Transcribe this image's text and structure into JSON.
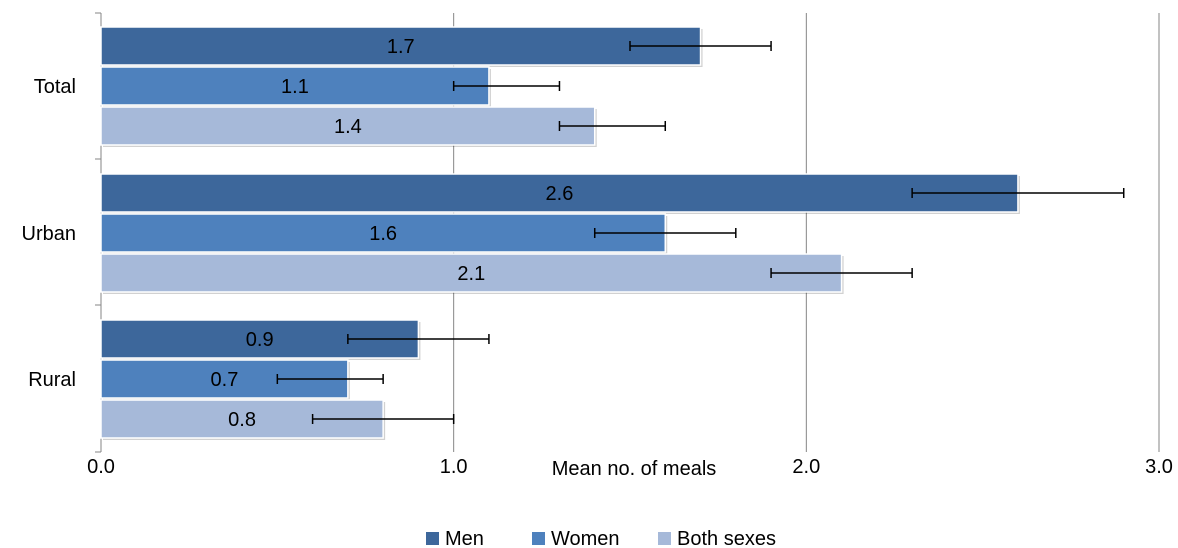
{
  "chart_data": {
    "type": "bar",
    "orientation": "horizontal",
    "categories": [
      "Total",
      "Urban",
      "Rural"
    ],
    "series": [
      {
        "name": "Men",
        "values": [
          1.7,
          2.6,
          0.9
        ],
        "error_low": [
          1.5,
          2.3,
          0.7
        ],
        "error_high": [
          1.9,
          2.9,
          1.1
        ]
      },
      {
        "name": "Women",
        "values": [
          1.1,
          1.6,
          0.7
        ],
        "error_low": [
          1.0,
          1.4,
          0.5
        ],
        "error_high": [
          1.3,
          1.8,
          0.8
        ]
      },
      {
        "name": "Both sexes",
        "values": [
          1.4,
          2.1,
          0.8
        ],
        "error_low": [
          1.3,
          1.9,
          0.6
        ],
        "error_high": [
          1.6,
          2.3,
          1.0
        ]
      }
    ],
    "data_labels": [
      [
        "1.7",
        "2.6",
        "0.9"
      ],
      [
        "1.1",
        "1.6",
        "0.7"
      ],
      [
        "1.4",
        "2.1",
        "0.8"
      ]
    ],
    "xlabel": "Mean no. of meals",
    "xlim": [
      0,
      3
    ],
    "xticks": [
      "0.0",
      "1.0",
      "2.0",
      "3.0"
    ],
    "grid": "vertical",
    "legend_position": "bottom",
    "colors": [
      "#3d679b",
      "#4e81bd",
      "#a6b9d9"
    ]
  }
}
